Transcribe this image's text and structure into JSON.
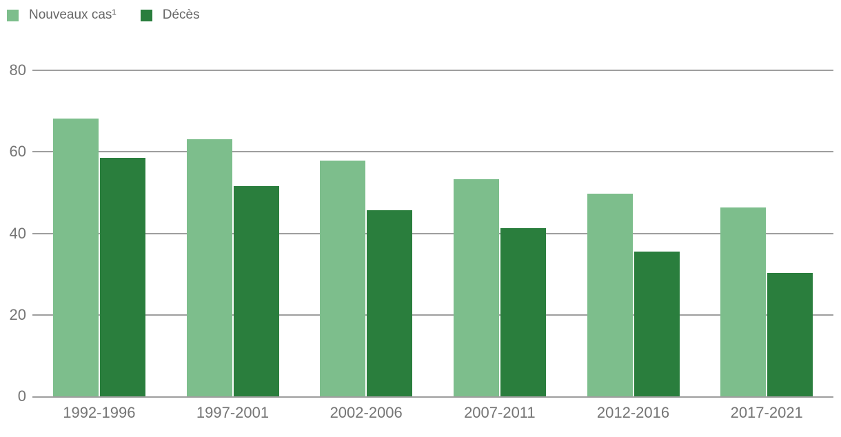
{
  "legend": {
    "items": [
      {
        "id": "nouveaux-cas",
        "label": "Nouveaux cas¹",
        "color": "#7dbe8c"
      },
      {
        "id": "deces",
        "label": "Décès",
        "color": "#2a7e3d"
      }
    ]
  },
  "chart_data": {
    "type": "bar",
    "title": "",
    "xlabel": "",
    "ylabel": "",
    "categories": [
      "1992-1996",
      "1997-2001",
      "2002-2006",
      "2007-2011",
      "2012-2016",
      "2017-2021"
    ],
    "series": [
      {
        "id": "nouveaux-cas",
        "name": "Nouveaux cas¹",
        "color": "#7dbe8c",
        "values": [
          68.2,
          63.1,
          57.9,
          53.2,
          49.8,
          46.3
        ]
      },
      {
        "id": "deces",
        "name": "Décès",
        "color": "#2a7e3d",
        "values": [
          58.6,
          51.6,
          45.6,
          41.2,
          35.5,
          30.2
        ]
      }
    ],
    "ylim": [
      0,
      80
    ],
    "y_ticks": [
      0,
      20,
      40,
      60,
      80
    ],
    "grid": true,
    "legend_position": "top-left"
  },
  "style_colors": {
    "gridline": "#9e9e9e",
    "axis_label_text": "#757575",
    "legend_text": "#666666",
    "background": "#ffffff"
  }
}
